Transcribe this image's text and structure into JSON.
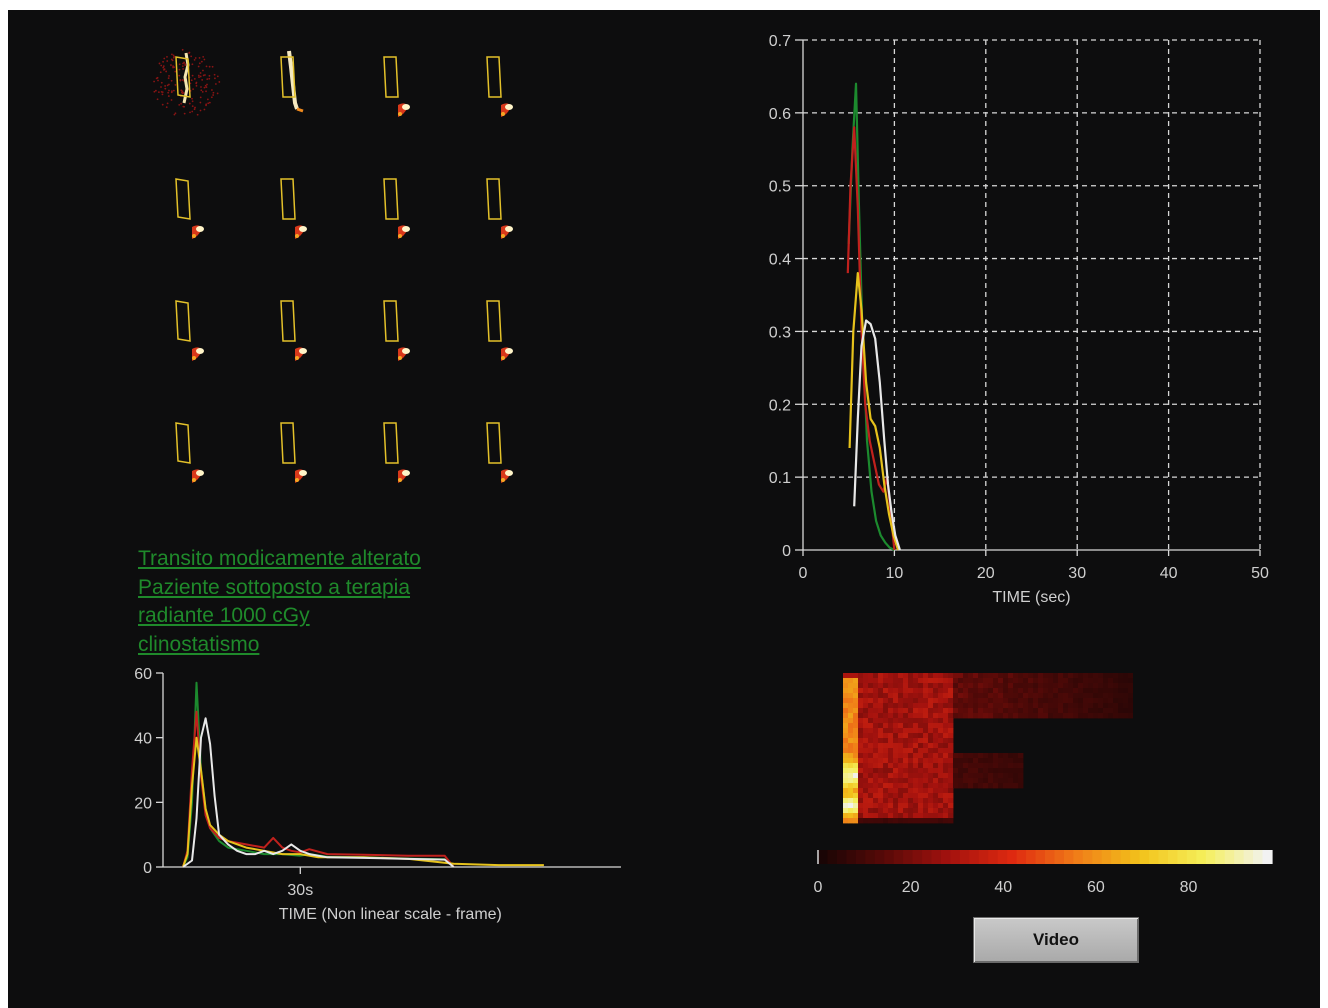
{
  "notes": {
    "lines": [
      "Transito modicamente alterato",
      "Paziente sottoposto a terapia",
      "radiante 1000 cGy",
      "clinostatismo"
    ],
    "color": "#1f8a2b"
  },
  "colors": {
    "background": "#0d0d0e",
    "roi_outline": "#e3c12a",
    "curve_green": "#1c8a2e",
    "curve_red": "#c0211d",
    "curve_yellow": "#e6c21c",
    "curve_white": "#e8e8e8"
  },
  "frame_grid": {
    "rows": 4,
    "cols": 4
  },
  "chart_data": [
    {
      "type": "line",
      "xlabel": "TIME (sec)",
      "ylabel": "",
      "xlim": [
        0,
        50
      ],
      "ylim": [
        0,
        0.7
      ],
      "xticks": [
        0,
        10,
        20,
        30,
        40,
        50
      ],
      "yticks": [
        0,
        0.1,
        0.2,
        0.3,
        0.4,
        0.5,
        0.6,
        0.7
      ],
      "grid": true,
      "series": [
        {
          "color": "#1c8a2e",
          "x": [
            5,
            5.4,
            5.8,
            6.1,
            6.5,
            7,
            7.5,
            8,
            8.5,
            9,
            9.5,
            10
          ],
          "y": [
            0.42,
            0.55,
            0.64,
            0.48,
            0.3,
            0.15,
            0.08,
            0.04,
            0.02,
            0.01,
            0.003,
            0
          ]
        },
        {
          "color": "#c0211d",
          "x": [
            4.9,
            5.2,
            5.6,
            6,
            6.4,
            6.8,
            7.3,
            7.8,
            8.3,
            8.8,
            9.2,
            9.6,
            10
          ],
          "y": [
            0.38,
            0.5,
            0.58,
            0.47,
            0.3,
            0.2,
            0.15,
            0.12,
            0.09,
            0.08,
            0.1,
            0.05,
            0
          ]
        },
        {
          "color": "#e6c21c",
          "x": [
            5.1,
            5.5,
            6,
            6.4,
            6.9,
            7.4,
            7.9,
            8.4,
            8.9,
            9.4,
            9.9,
            10.4
          ],
          "y": [
            0.14,
            0.3,
            0.38,
            0.33,
            0.23,
            0.18,
            0.17,
            0.14,
            0.09,
            0.05,
            0.02,
            0
          ]
        },
        {
          "color": "#e8e8e8",
          "x": [
            5.6,
            6,
            6.4,
            6.9,
            7.4,
            7.9,
            8.4,
            8.9,
            9.3,
            9.7,
            10.1,
            10.6
          ],
          "y": [
            0.06,
            0.18,
            0.28,
            0.315,
            0.31,
            0.29,
            0.23,
            0.15,
            0.09,
            0.05,
            0.02,
            0
          ]
        }
      ]
    },
    {
      "type": "line",
      "xlabel": "TIME (Non linear scale - frame)",
      "ylabel": "",
      "ylim": [
        0,
        60
      ],
      "yticks": [
        0,
        20,
        40,
        60
      ],
      "x_tick_label": "30s",
      "xlim": [
        0,
        100
      ],
      "x_tick_position": 26,
      "grid": false,
      "series": [
        {
          "color": "#1c8a2e",
          "x": [
            0,
            1,
            2,
            3,
            4,
            5,
            6,
            8,
            10,
            14,
            18,
            22,
            26,
            28,
            32,
            40,
            50,
            58,
            60
          ],
          "y": [
            0,
            3,
            20,
            57,
            30,
            18,
            12,
            8,
            6,
            5,
            4,
            4,
            3.5,
            4,
            3.2,
            3,
            2.6,
            2.4,
            0
          ]
        },
        {
          "color": "#c0211d",
          "x": [
            0,
            1,
            2,
            3,
            4,
            5,
            6,
            8,
            10,
            14,
            18,
            20,
            22,
            24,
            26,
            28,
            32,
            40,
            50,
            58,
            60
          ],
          "y": [
            0,
            5,
            30,
            48,
            28,
            16,
            12,
            9,
            8,
            7,
            6,
            9,
            6,
            5,
            4.5,
            5.5,
            4,
            3.8,
            3.5,
            3.5,
            0
          ]
        },
        {
          "color": "#e6c21c",
          "x": [
            0,
            1,
            2,
            3,
            4,
            5,
            6,
            8,
            10,
            14,
            18,
            22,
            26,
            30,
            40,
            50,
            60,
            70,
            80
          ],
          "y": [
            0,
            4,
            25,
            40,
            30,
            18,
            13,
            10,
            8,
            6,
            5,
            4,
            4,
            3,
            3,
            2.5,
            1,
            0.6,
            0.6
          ]
        },
        {
          "color": "#e8e8e8",
          "x": [
            0,
            2,
            3,
            4,
            5,
            6,
            7,
            8,
            10,
            12,
            14,
            16,
            18,
            20,
            22,
            24,
            26,
            28,
            32,
            40,
            50,
            58,
            60
          ],
          "y": [
            0,
            2,
            15,
            40,
            46,
            38,
            22,
            10,
            7,
            5,
            4,
            4,
            5,
            4,
            5,
            7,
            5,
            4,
            3,
            2.8,
            2.5,
            2.3,
            0
          ]
        }
      ]
    },
    {
      "type": "heatmap",
      "colorbar_ticks": [
        0,
        20,
        40,
        60,
        80
      ],
      "colorbar_range": [
        0,
        100
      ],
      "colorbar_colors": [
        "#1a0505",
        "#5a0a08",
        "#a4120e",
        "#df2a10",
        "#f07d18",
        "#f2c21b",
        "#f5ef5a",
        "#f2f2f2"
      ]
    }
  ],
  "video_button": {
    "label": "Video"
  }
}
